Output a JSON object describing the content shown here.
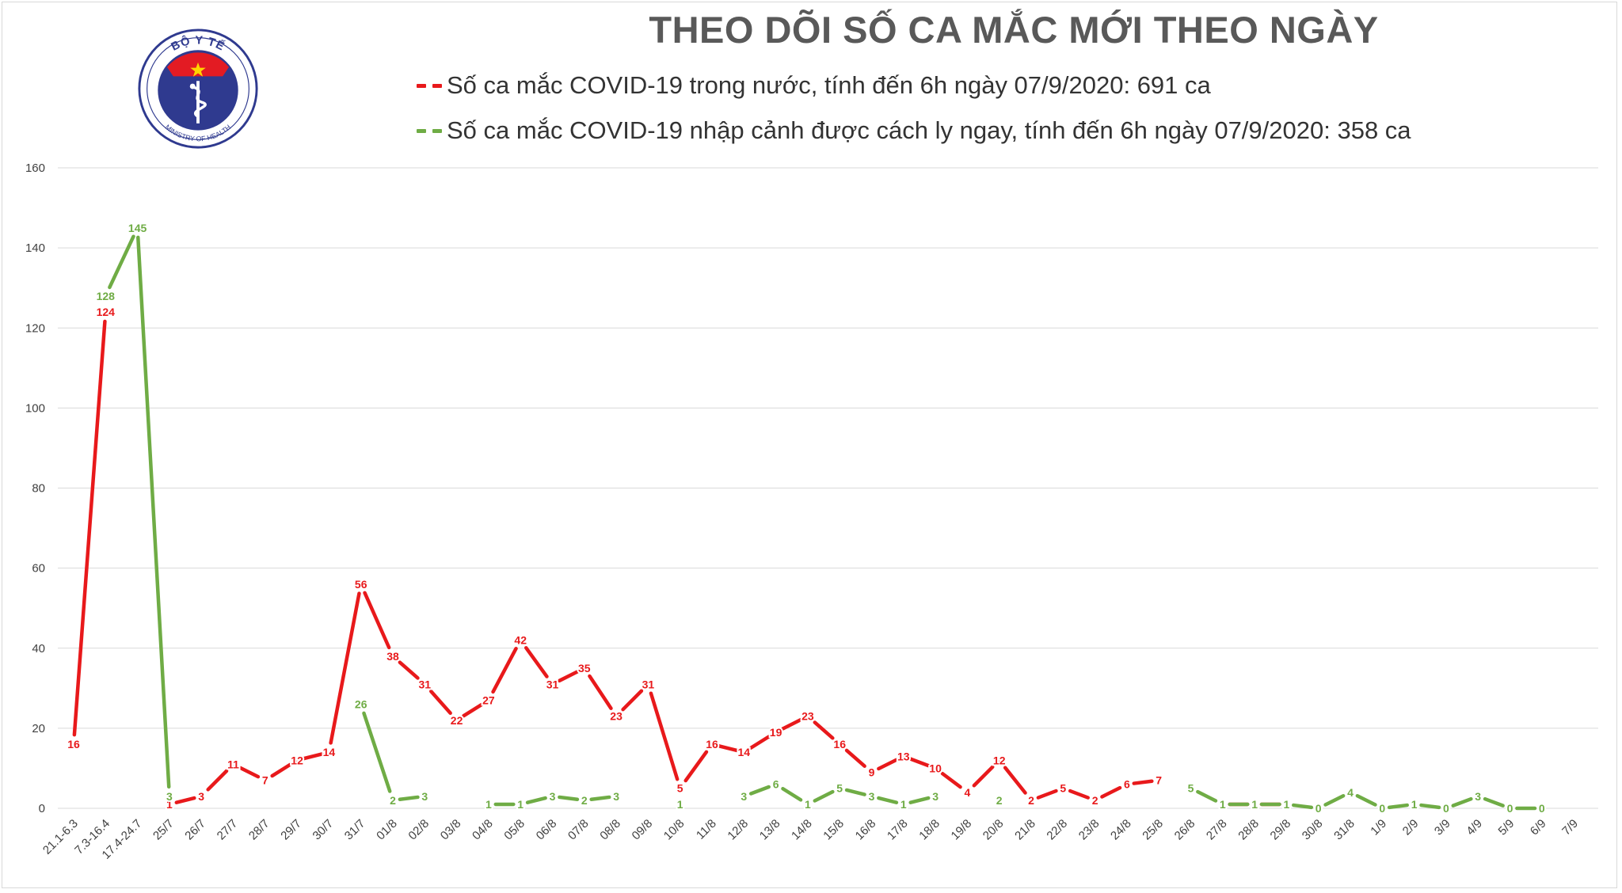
{
  "logo": {
    "top_text": "BỘ Y TẾ",
    "bottom_text": "MINISTRY OF HEALTH"
  },
  "colors": {
    "domestic": "#e8191b",
    "imported": "#6fac45",
    "grid": "#d9d9d9",
    "title": "#595959"
  },
  "chart_data": {
    "type": "line",
    "title": "THEO DÕI SỐ CA MẮC MỚI THEO NGÀY",
    "xlabel": "",
    "ylabel": "",
    "ylim": [
      0,
      160
    ],
    "yticks": [
      0,
      20,
      40,
      60,
      80,
      100,
      120,
      140,
      160
    ],
    "grid": true,
    "legend_position": "top",
    "categories": [
      "21.1-6.3",
      "7.3-16.4",
      "17.4-24.7",
      "25/7",
      "26/7",
      "27/7",
      "28/7",
      "29/7",
      "30/7",
      "31/7",
      "01/8",
      "02/8",
      "03/8",
      "04/8",
      "05/8",
      "06/8",
      "07/8",
      "08/8",
      "09/8",
      "10/8",
      "11/8",
      "12/8",
      "13/8",
      "14/8",
      "15/8",
      "16/8",
      "17/8",
      "18/8",
      "19/8",
      "20/8",
      "21/8",
      "22/8",
      "23/8",
      "24/8",
      "25/8",
      "26/8",
      "27/8",
      "28/8",
      "29/8",
      "30/8",
      "31/8",
      "1/9",
      "2/9",
      "3/9",
      "4/9",
      "5/9",
      "6/9",
      "7/9"
    ],
    "series": [
      {
        "name": "Số ca mắc COVID-19 trong nước, tính đến 6h ngày 07/9/2020: 691 ca",
        "color": "#e8191b",
        "values": [
          16,
          124,
          null,
          1,
          3,
          11,
          7,
          12,
          14,
          56,
          38,
          31,
          22,
          27,
          42,
          31,
          35,
          23,
          31,
          5,
          16,
          14,
          19,
          23,
          16,
          9,
          13,
          10,
          4,
          12,
          2,
          5,
          2,
          6,
          7,
          null,
          1,
          1,
          1,
          null,
          null,
          null,
          1,
          null,
          null,
          null,
          null,
          null
        ]
      },
      {
        "name": "Số ca mắc COVID-19 nhập cảnh được cách ly ngay, tính đến 6h ngày 07/9/2020: 358 ca",
        "color": "#6fac45",
        "values": [
          null,
          128,
          145,
          3,
          null,
          null,
          null,
          null,
          null,
          26,
          2,
          3,
          null,
          1,
          1,
          3,
          2,
          3,
          null,
          1,
          null,
          3,
          6,
          1,
          5,
          3,
          1,
          3,
          null,
          2,
          null,
          null,
          null,
          null,
          null,
          5,
          1,
          1,
          1,
          0,
          4,
          0,
          1,
          0,
          3,
          0,
          0,
          null
        ]
      }
    ]
  }
}
